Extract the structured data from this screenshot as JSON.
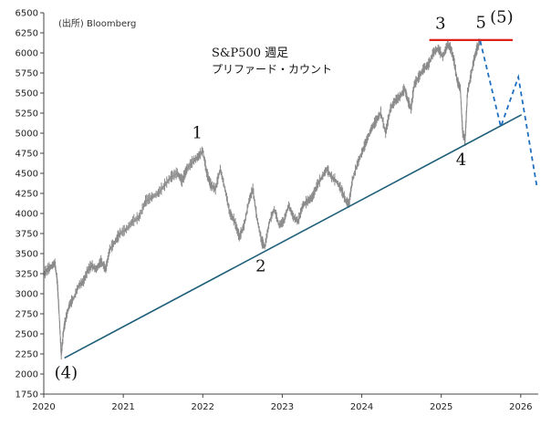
{
  "chart_data": {
    "type": "line",
    "title": "S&P500 週足",
    "subtitle": "プリファード・カウント",
    "source": "(出所)  Bloomberg",
    "xlabel": "",
    "ylabel": "",
    "x_ticks": [
      "2020",
      "2021",
      "2022",
      "2023",
      "2024",
      "2025",
      "2026"
    ],
    "xlim": [
      2020.0,
      2026.22
    ],
    "y_ticks": [
      "1750",
      "2000",
      "2250",
      "2500",
      "2750",
      "3000",
      "3250",
      "3500",
      "3750",
      "4000",
      "4250",
      "4500",
      "4750",
      "5000",
      "5250",
      "5500",
      "5750",
      "6000",
      "6250",
      "6500"
    ],
    "ylim": [
      1750,
      6500
    ],
    "grid": false,
    "colors": {
      "price": "#8a8a8a",
      "trendline": "#1f5f7a",
      "resistance": "#e0201b",
      "projection": "#1f6fc0",
      "axis": "#444444"
    },
    "series": [
      {
        "kind": "price",
        "points": [
          [
            2020.0,
            3240
          ],
          [
            2020.05,
            3300
          ],
          [
            2020.1,
            3340
          ],
          [
            2020.14,
            3380
          ],
          [
            2020.17,
            3150
          ],
          [
            2020.19,
            2800
          ],
          [
            2020.22,
            2230
          ],
          [
            2020.25,
            2550
          ],
          [
            2020.28,
            2700
          ],
          [
            2020.32,
            2850
          ],
          [
            2020.38,
            2950
          ],
          [
            2020.44,
            3100
          ],
          [
            2020.5,
            3150
          ],
          [
            2020.55,
            3280
          ],
          [
            2020.6,
            3350
          ],
          [
            2020.66,
            3300
          ],
          [
            2020.72,
            3400
          ],
          [
            2020.78,
            3300
          ],
          [
            2020.83,
            3550
          ],
          [
            2020.9,
            3650
          ],
          [
            2020.96,
            3750
          ],
          [
            2021.04,
            3800
          ],
          [
            2021.12,
            3900
          ],
          [
            2021.2,
            3950
          ],
          [
            2021.28,
            4150
          ],
          [
            2021.36,
            4200
          ],
          [
            2021.44,
            4250
          ],
          [
            2021.52,
            4350
          ],
          [
            2021.6,
            4450
          ],
          [
            2021.68,
            4500
          ],
          [
            2021.74,
            4400
          ],
          [
            2021.8,
            4550
          ],
          [
            2021.88,
            4650
          ],
          [
            2021.94,
            4700
          ],
          [
            2022.0,
            4780
          ],
          [
            2022.05,
            4500
          ],
          [
            2022.1,
            4350
          ],
          [
            2022.16,
            4300
          ],
          [
            2022.22,
            4550
          ],
          [
            2022.28,
            4300
          ],
          [
            2022.34,
            4000
          ],
          [
            2022.4,
            3900
          ],
          [
            2022.46,
            3700
          ],
          [
            2022.52,
            3850
          ],
          [
            2022.58,
            4150
          ],
          [
            2022.63,
            4300
          ],
          [
            2022.68,
            3950
          ],
          [
            2022.74,
            3650
          ],
          [
            2022.78,
            3580
          ],
          [
            2022.84,
            3900
          ],
          [
            2022.9,
            4050
          ],
          [
            2022.96,
            3850
          ],
          [
            2023.02,
            3900
          ],
          [
            2023.08,
            4100
          ],
          [
            2023.14,
            3950
          ],
          [
            2023.2,
            3900
          ],
          [
            2023.26,
            4100
          ],
          [
            2023.32,
            4150
          ],
          [
            2023.38,
            4200
          ],
          [
            2023.44,
            4350
          ],
          [
            2023.5,
            4450
          ],
          [
            2023.56,
            4550
          ],
          [
            2023.62,
            4450
          ],
          [
            2023.68,
            4400
          ],
          [
            2023.74,
            4300
          ],
          [
            2023.8,
            4150
          ],
          [
            2023.84,
            4120
          ],
          [
            2023.88,
            4400
          ],
          [
            2023.94,
            4600
          ],
          [
            2024.0,
            4750
          ],
          [
            2024.06,
            4900
          ],
          [
            2024.12,
            5050
          ],
          [
            2024.18,
            5150
          ],
          [
            2024.24,
            5250
          ],
          [
            2024.3,
            5000
          ],
          [
            2024.36,
            5300
          ],
          [
            2024.42,
            5400
          ],
          [
            2024.48,
            5450
          ],
          [
            2024.54,
            5550
          ],
          [
            2024.58,
            5400
          ],
          [
            2024.62,
            5300
          ],
          [
            2024.66,
            5600
          ],
          [
            2024.72,
            5700
          ],
          [
            2024.78,
            5800
          ],
          [
            2024.84,
            5850
          ],
          [
            2024.9,
            6000
          ],
          [
            2024.96,
            6050
          ],
          [
            2025.02,
            5950
          ],
          [
            2025.08,
            6100
          ],
          [
            2025.12,
            6050
          ],
          [
            2025.16,
            5900
          ],
          [
            2025.2,
            5650
          ],
          [
            2025.24,
            5550
          ],
          [
            2025.27,
            5000
          ],
          [
            2025.3,
            4900
          ],
          [
            2025.33,
            5500
          ],
          [
            2025.37,
            5700
          ],
          [
            2025.41,
            5900
          ],
          [
            2025.45,
            6050
          ],
          [
            2025.49,
            6150
          ]
        ]
      },
      {
        "kind": "trendline",
        "points": [
          [
            2020.26,
            2200
          ],
          [
            2026.01,
            5230
          ]
        ]
      },
      {
        "kind": "resistance",
        "points": [
          [
            2024.85,
            6160
          ],
          [
            2025.9,
            6160
          ]
        ]
      },
      {
        "kind": "projection",
        "points": [
          [
            2025.49,
            6150
          ],
          [
            2025.75,
            5080
          ],
          [
            2025.97,
            5700
          ],
          [
            2026.2,
            4350
          ]
        ]
      }
    ],
    "wave_labels": [
      {
        "text": "(4)",
        "x": 2020.28,
        "y": 1950
      },
      {
        "text": "1",
        "x": 2021.93,
        "y": 4940
      },
      {
        "text": "2",
        "x": 2022.73,
        "y": 3280
      },
      {
        "text": "3",
        "x": 2024.99,
        "y": 6300
      },
      {
        "text": "4",
        "x": 2025.25,
        "y": 4600
      },
      {
        "text": "5",
        "x": 2025.5,
        "y": 6310
      },
      {
        "text": "(5)",
        "x": 2025.76,
        "y": 6380
      }
    ]
  }
}
